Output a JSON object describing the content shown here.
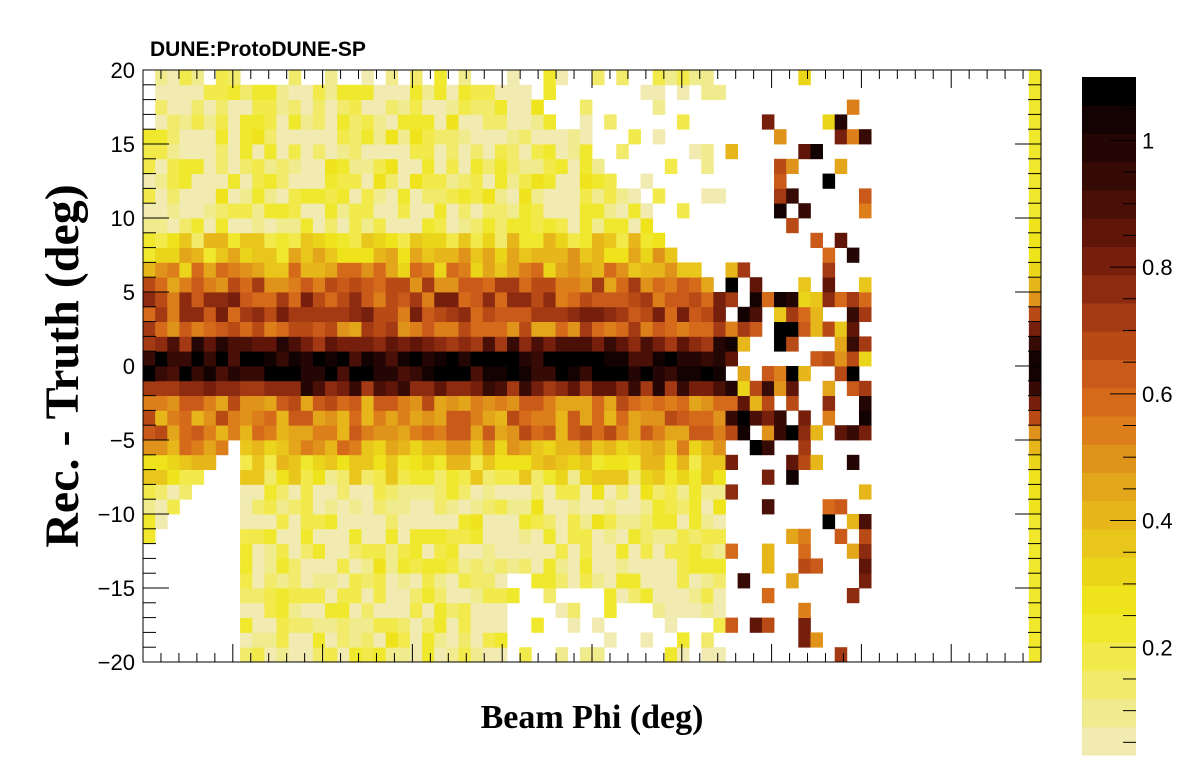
{
  "chart_data": {
    "type": "heatmap",
    "title": "DUNE:ProtoDUNE-SP",
    "xlabel": "Beam Phi (deg)",
    "ylabel": "Rec. - Truth (deg)",
    "ylim": [
      -20,
      20
    ],
    "yticks": [
      -20,
      -15,
      -10,
      -5,
      0,
      5,
      10,
      15,
      20
    ],
    "y_tick_labels": [
      "−20",
      "−15",
      "−10",
      "−5",
      "0",
      "5",
      "10",
      "15",
      "20"
    ],
    "x_tick_labels": [],
    "nx": 74,
    "ny": 40,
    "zlim": [
      0.03,
      1.1
    ],
    "z_ticks": [
      0.2,
      0.4,
      0.6,
      0.8,
      1
    ],
    "z_tick_labels": [
      "0.2",
      "0.4",
      "0.6",
      "0.8",
      "1"
    ],
    "palette": [
      "#f1ebb2",
      "#f0eb8c",
      "#f1ea6b",
      "#f1ea4a",
      "#f0e82c",
      "#efe31b",
      "#ebd51a",
      "#e8c61b",
      "#e6b61a",
      "#e3a51a",
      "#e0931a",
      "#dc7e1a",
      "#d56b1a",
      "#c95a19",
      "#b84a16",
      "#a33a13",
      "#8d2b10",
      "#761f0c",
      "#5f1609",
      "#4a0f06",
      "#360a05",
      "#240604",
      "#120302",
      "#000000"
    ],
    "colors": {
      "frame": "#000000",
      "background": "#ffffff",
      "text": "#000000"
    }
  }
}
